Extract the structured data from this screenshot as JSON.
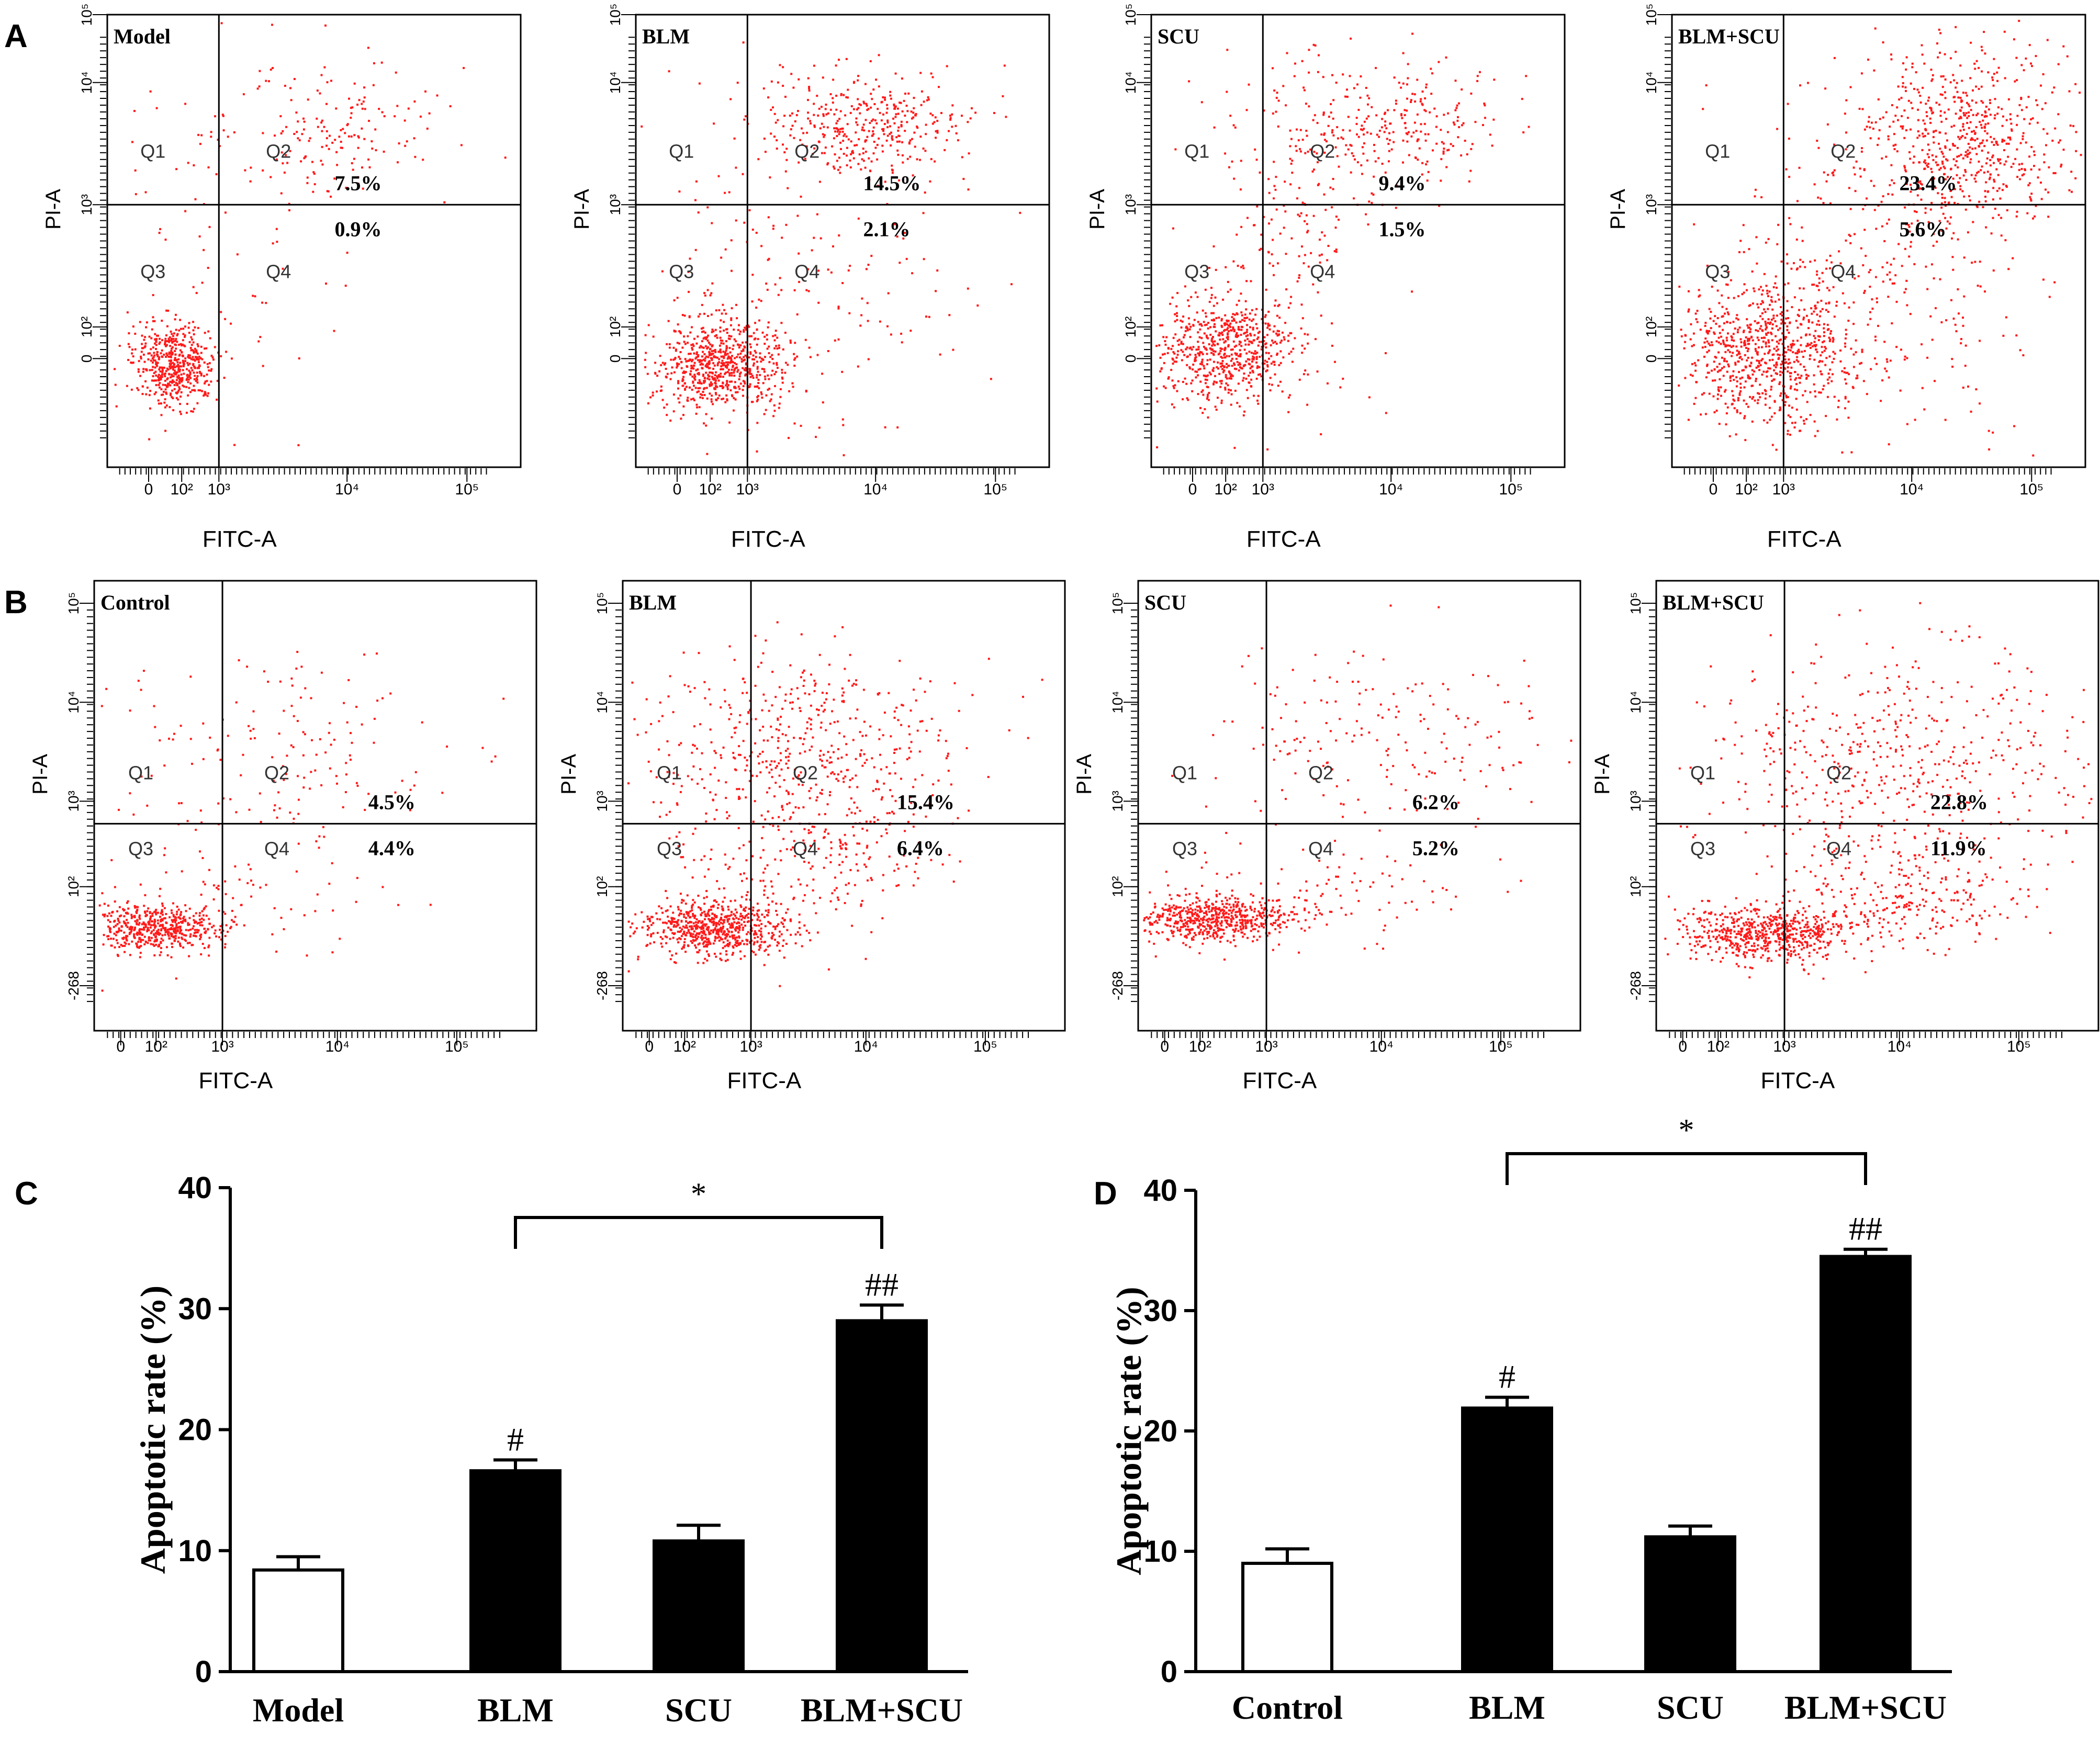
{
  "colors": {
    "dot": "#ff1a1a",
    "ink": "#000000",
    "open_bar": "#ffffff",
    "filled_bar": "#000000"
  },
  "chart_data": [
    {
      "type": "scatter",
      "panel": "A",
      "panel_label": "A",
      "xlabel": "FITC-A",
      "ylabel": "PI-A",
      "x_ticks": [
        "0",
        "10²",
        "10³",
        "10⁴",
        "10⁵"
      ],
      "y_ticks": [
        "0",
        "10²",
        "10³",
        "10⁴",
        "10⁵"
      ],
      "quadrant_labels": [
        "Q1",
        "Q2",
        "Q3",
        "Q4"
      ],
      "plots": [
        {
          "title": "Model",
          "q2": "7.5%",
          "q4": "0.9%"
        },
        {
          "title": "BLM",
          "q2": "14.5%",
          "q4": "2.1%"
        },
        {
          "title": "SCU",
          "q2": "9.4%",
          "q4": "1.5%"
        },
        {
          "title": "BLM+SCU",
          "q2": "23.4%",
          "q4": "5.6%"
        }
      ]
    },
    {
      "type": "scatter",
      "panel": "B",
      "panel_label": "B",
      "xlabel": "FITC-A",
      "ylabel": "PI-A",
      "x_ticks": [
        "0",
        "10²",
        "10³",
        "10⁴",
        "10⁵"
      ],
      "y_ticks": [
        "-268",
        "10²",
        "10³",
        "10⁴",
        "10⁵"
      ],
      "quadrant_labels": [
        "Q1",
        "Q2",
        "Q3",
        "Q4"
      ],
      "plots": [
        {
          "title": "Control",
          "q2": "4.5%",
          "q4": "4.4%"
        },
        {
          "title": "BLM",
          "q2": "15.4%",
          "q4": "6.4%"
        },
        {
          "title": "SCU",
          "q2": "6.2%",
          "q4": "5.2%"
        },
        {
          "title": "BLM+SCU",
          "q2": "22.8%",
          "q4": "11.9%"
        }
      ]
    },
    {
      "type": "bar",
      "panel": "C",
      "panel_label": "C",
      "categories": [
        "Model",
        "BLM",
        "SCU",
        "BLM+SCU"
      ],
      "values": [
        8.4,
        16.6,
        10.8,
        29.0
      ],
      "errors": [
        1.1,
        0.9,
        1.3,
        1.3
      ],
      "annotations": [
        "",
        "#",
        "",
        "##"
      ],
      "significance": {
        "from": 1,
        "to": 3,
        "label": "*"
      },
      "ylabel": "Apoptotic rate (%)",
      "yticks": [
        0,
        10,
        20,
        30,
        40
      ],
      "ylim": [
        0,
        40
      ]
    },
    {
      "type": "bar",
      "panel": "D",
      "panel_label": "D",
      "categories": [
        "Control",
        "BLM",
        "SCU",
        "BLM+SCU"
      ],
      "values": [
        9.0,
        21.9,
        11.2,
        34.5
      ],
      "errors": [
        1.2,
        0.9,
        0.9,
        0.6
      ],
      "annotations": [
        "",
        "#",
        "",
        "##"
      ],
      "significance": {
        "from": 1,
        "to": 3,
        "label": "*"
      },
      "ylabel": "Apoptotic rate (%)",
      "yticks": [
        0,
        10,
        20,
        30,
        40
      ],
      "ylim": [
        0,
        40
      ]
    }
  ]
}
